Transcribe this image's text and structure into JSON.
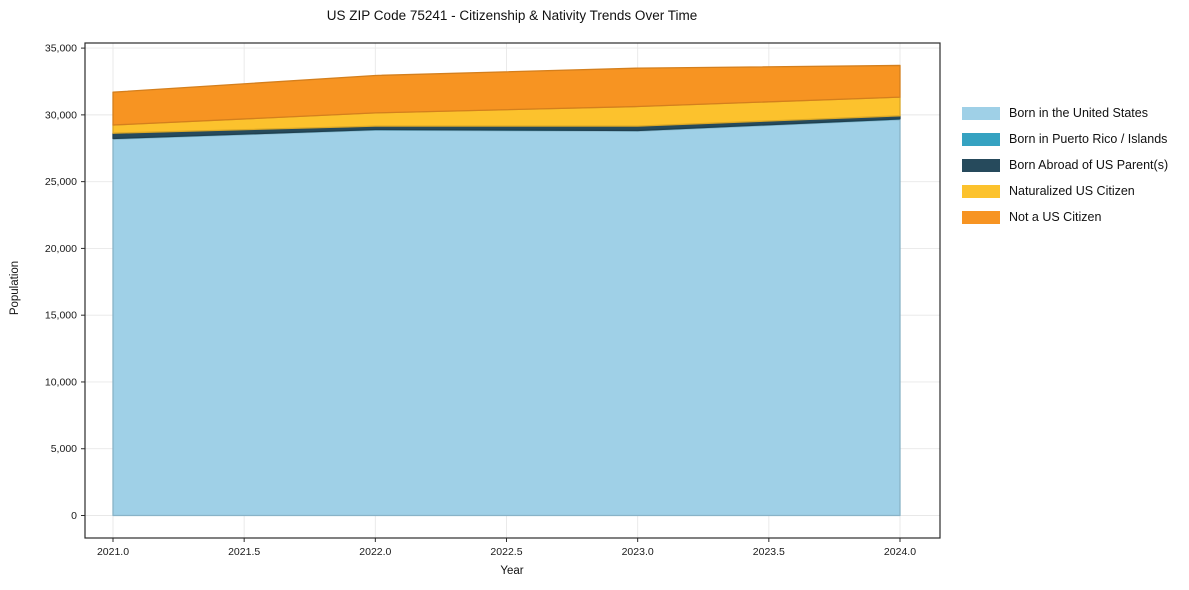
{
  "chart_data": {
    "type": "area",
    "stacked": true,
    "title": "US ZIP Code 75241 - Citizenship & Nativity Trends Over Time",
    "xlabel": "Year",
    "ylabel": "Population",
    "x": [
      2021,
      2022,
      2023,
      2024
    ],
    "xlim": [
      2020.89,
      2024.15
    ],
    "ylim": [
      0,
      35000
    ],
    "grid": true,
    "legend_position": "right",
    "xticks": [
      {
        "value": 2021.0,
        "label": "2021.0"
      },
      {
        "value": 2021.5,
        "label": "2021.5"
      },
      {
        "value": 2022.0,
        "label": "2022.0"
      },
      {
        "value": 2022.5,
        "label": "2022.5"
      },
      {
        "value": 2023.0,
        "label": "2023.0"
      },
      {
        "value": 2023.5,
        "label": "2023.5"
      },
      {
        "value": 2024.0,
        "label": "2024.0"
      }
    ],
    "yticks": [
      {
        "value": 0,
        "label": "0"
      },
      {
        "value": 5000,
        "label": "5,000"
      },
      {
        "value": 10000,
        "label": "10,000"
      },
      {
        "value": 15000,
        "label": "15,000"
      },
      {
        "value": 20000,
        "label": "20,000"
      },
      {
        "value": 25000,
        "label": "25,000"
      },
      {
        "value": 30000,
        "label": "30,000"
      },
      {
        "value": 35000,
        "label": "35,000"
      }
    ],
    "series": [
      {
        "name": "Born in the United States",
        "color": "#9fd0e7",
        "values": [
          28180,
          28850,
          28780,
          29640
        ]
      },
      {
        "name": "Born in Puerto Rico / Islands",
        "color": "#35a2c1",
        "values": [
          50,
          55,
          55,
          60
        ]
      },
      {
        "name": "Born Abroad of US Parent(s)",
        "color": "#264a5c",
        "values": [
          400,
          250,
          320,
          230
        ]
      },
      {
        "name": "Naturalized US Citizen",
        "color": "#fcc22d",
        "values": [
          610,
          995,
          1470,
          1400
        ]
      },
      {
        "name": "Not a US Citizen",
        "color": "#f79422",
        "values": [
          2460,
          2800,
          2875,
          2370
        ]
      }
    ],
    "totals_by_year": [
      31700,
      32950,
      33500,
      33700
    ]
  }
}
